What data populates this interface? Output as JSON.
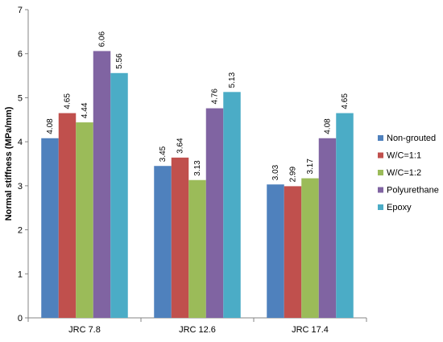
{
  "chart_data": {
    "type": "bar",
    "title": "",
    "xlabel": "",
    "ylabel": "Normal stiffness (MPa/mm)",
    "ylim": [
      0,
      7
    ],
    "yticks": [
      0,
      1,
      2,
      3,
      4,
      5,
      6,
      7
    ],
    "grid": false,
    "legend_position": "right",
    "categories": [
      "JRC 7.8",
      "JRC 12.6",
      "JRC 17.4"
    ],
    "series": [
      {
        "name": "Non-grouted",
        "color": "#4f81bd",
        "values": [
          4.08,
          3.45,
          3.03
        ],
        "labels": [
          "4.08",
          "3.45",
          "3.03"
        ]
      },
      {
        "name": "W/C=1:1",
        "color": "#c0504d",
        "values": [
          4.65,
          3.64,
          2.99
        ],
        "labels": [
          "4.65",
          "3.64",
          "2.99"
        ]
      },
      {
        "name": "W/C=1:2",
        "color": "#9bbb59",
        "values": [
          4.44,
          3.13,
          3.17
        ],
        "labels": [
          "4.44",
          "3.13",
          "3.17"
        ]
      },
      {
        "name": "Polyurethane",
        "color": "#8064a2",
        "values": [
          6.06,
          4.76,
          4.08
        ],
        "labels": [
          "6.06",
          "4.76",
          "4.08"
        ]
      },
      {
        "name": "Epoxy",
        "color": "#4bacc6",
        "values": [
          5.56,
          5.13,
          4.65
        ],
        "labels": [
          "5.56",
          "5.13",
          "4.65"
        ]
      }
    ]
  }
}
